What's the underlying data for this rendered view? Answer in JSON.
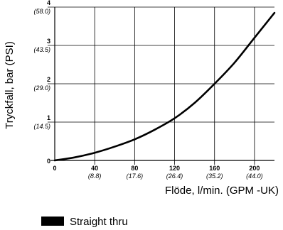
{
  "chart_data": {
    "type": "line",
    "xlabel": "Flöde, l/min. (GPM -UK)",
    "ylabel": "Tryckfall, bar (PSI)",
    "xlim": [
      0,
      220
    ],
    "ylim": [
      0,
      4
    ],
    "grid": true,
    "legend_position": "bottom-left",
    "x_ticks": [
      {
        "value": 0,
        "label": "0",
        "sublabel": ""
      },
      {
        "value": 40,
        "label": "40",
        "sublabel": "(8.8)"
      },
      {
        "value": 80,
        "label": "80",
        "sublabel": "(17.6)"
      },
      {
        "value": 120,
        "label": "120",
        "sublabel": "(26.4)"
      },
      {
        "value": 160,
        "label": "160",
        "sublabel": "(35.2)"
      },
      {
        "value": 200,
        "label": "200",
        "sublabel": "(44.0)"
      }
    ],
    "y_ticks": [
      {
        "value": 0,
        "label": "0",
        "sublabel": ""
      },
      {
        "value": 1,
        "label": "1",
        "sublabel": "(14.5)"
      },
      {
        "value": 2,
        "label": "2",
        "sublabel": "(29.0)"
      },
      {
        "value": 3,
        "label": "3",
        "sublabel": "(43.5)"
      },
      {
        "value": 4,
        "label": "4",
        "sublabel": "(58.0)"
      }
    ],
    "series": [
      {
        "name": "Straight thru",
        "color": "#000000",
        "x": [
          0,
          20,
          40,
          60,
          80,
          100,
          120,
          140,
          160,
          180,
          200,
          220
        ],
        "y": [
          0,
          0.08,
          0.2,
          0.36,
          0.55,
          0.8,
          1.1,
          1.5,
          2.0,
          2.55,
          3.2,
          3.85
        ]
      }
    ]
  }
}
